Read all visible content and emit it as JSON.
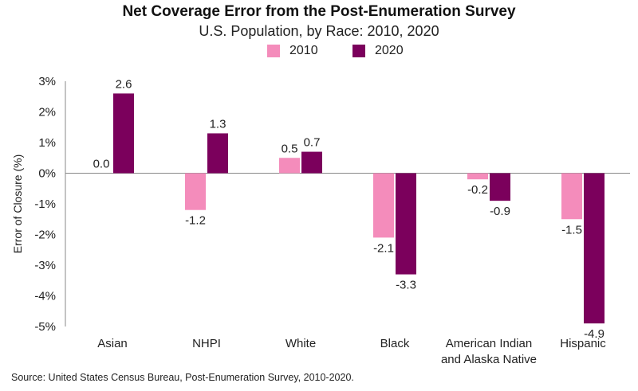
{
  "chart_data": {
    "type": "bar",
    "title": "Net Coverage Error from the Post-Enumeration Survey",
    "subtitle": "U.S. Population, by Race: 2010, 2020",
    "ylabel": "Error of Closure (%)",
    "xlabel": "",
    "ylim": [
      -5,
      3
    ],
    "yticks": [
      3,
      2,
      1,
      0,
      -1,
      -2,
      -3,
      -4,
      -5
    ],
    "ytick_labels": [
      "3%",
      "2%",
      "1%",
      "0%",
      "-1%",
      "-2%",
      "-3%",
      "-4%",
      "-5%"
    ],
    "categories": [
      "Asian",
      "NHPI",
      "White",
      "Black",
      "American Indian and Alaska Native",
      "Hispanic"
    ],
    "category_lines": [
      [
        "Asian"
      ],
      [
        "NHPI"
      ],
      [
        "White"
      ],
      [
        "Black"
      ],
      [
        "American Indian",
        "and Alaska Native"
      ],
      [
        "Hispanic"
      ]
    ],
    "series": [
      {
        "name": "2010",
        "color": "#f48cbb",
        "values": [
          0.0,
          -1.2,
          0.5,
          -2.1,
          -0.2,
          -1.5
        ],
        "labels": [
          "0.0",
          "-1.2",
          "0.5",
          "-2.1",
          "-0.2",
          "-1.5"
        ]
      },
      {
        "name": "2020",
        "color": "#7b005c",
        "values": [
          2.6,
          1.3,
          0.7,
          -3.3,
          -0.9,
          -4.9
        ],
        "labels": [
          "2.6",
          "1.3",
          "0.7",
          "-3.3",
          "-0.9",
          "-4.9"
        ]
      }
    ],
    "legend": "top",
    "grid": false
  },
  "source": "Source: United States Census Bureau, Post-Enumeration Survey, 2010-2020."
}
